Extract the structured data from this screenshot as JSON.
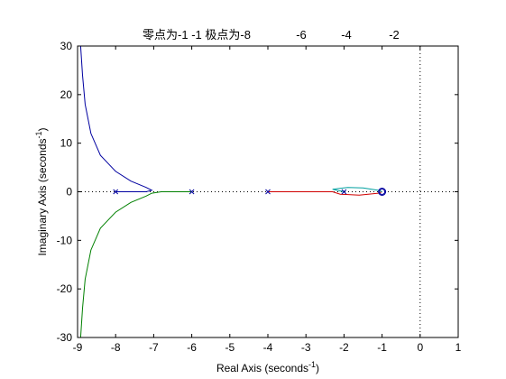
{
  "chart_data": {
    "type": "line",
    "title": "零点为-1 -1  极点为-8",
    "title_extra": [
      "-6",
      "-4",
      "-2"
    ],
    "xlabel": {
      "text": "Real Axis (seconds",
      "sup": "-1",
      "tail": ")"
    },
    "ylabel": {
      "text": "Imaginary Axis (seconds",
      "sup": "-1",
      "tail": ")"
    },
    "xlim": [
      -9,
      1
    ],
    "ylim": [
      -30,
      30
    ],
    "xticks": [
      "-9",
      "-8",
      "-7",
      "-6",
      "-5",
      "-4",
      "-3",
      "-2",
      "-1",
      "0",
      "1"
    ],
    "yticks": [
      "-30",
      "-20",
      "-10",
      "0",
      "10",
      "20",
      "30"
    ],
    "grid": false,
    "reference_lines": {
      "x": 0,
      "y": 0,
      "style": "dotted"
    },
    "poles": [
      [
        -8,
        0
      ],
      [
        -6,
        0
      ],
      [
        -4,
        0
      ],
      [
        -2,
        0
      ]
    ],
    "zeros": [
      [
        -1,
        0
      ],
      [
        -1,
        0
      ]
    ],
    "series": [
      {
        "color": "#0000a0",
        "points": [
          [
            -8,
            0
          ],
          [
            -7.6,
            0
          ],
          [
            -7.2,
            0
          ],
          [
            -7.05,
            0.3
          ],
          [
            -7.2,
            0.9
          ],
          [
            -7.6,
            2.2
          ],
          [
            -8.0,
            4.2
          ],
          [
            -8.4,
            7.5
          ],
          [
            -8.65,
            12
          ],
          [
            -8.8,
            18
          ],
          [
            -8.87,
            24
          ],
          [
            -8.92,
            30
          ]
        ]
      },
      {
        "color": "#008000",
        "points": [
          [
            -6,
            0
          ],
          [
            -6.4,
            0
          ],
          [
            -6.8,
            0
          ],
          [
            -7.05,
            -0.3
          ],
          [
            -7.2,
            -0.9
          ],
          [
            -7.6,
            -2.2
          ],
          [
            -8.0,
            -4.2
          ],
          [
            -8.4,
            -7.5
          ],
          [
            -8.65,
            -12
          ],
          [
            -8.8,
            -18
          ],
          [
            -8.87,
            -24
          ],
          [
            -8.92,
            -30
          ]
        ]
      },
      {
        "color": "#d00000",
        "points": [
          [
            -4,
            0
          ],
          [
            -3,
            0
          ],
          [
            -2.3,
            0
          ],
          [
            -2.1,
            -0.5
          ],
          [
            -1.6,
            -0.7
          ],
          [
            -1.1,
            -0.3
          ],
          [
            -1.0,
            0
          ]
        ]
      },
      {
        "color": "#00a0a0",
        "points": [
          [
            -2,
            0
          ],
          [
            -2.3,
            0.5
          ],
          [
            -1.9,
            0.9
          ],
          [
            -1.5,
            0.8
          ],
          [
            -1.1,
            0.3
          ],
          [
            -1.0,
            0
          ]
        ]
      }
    ]
  }
}
